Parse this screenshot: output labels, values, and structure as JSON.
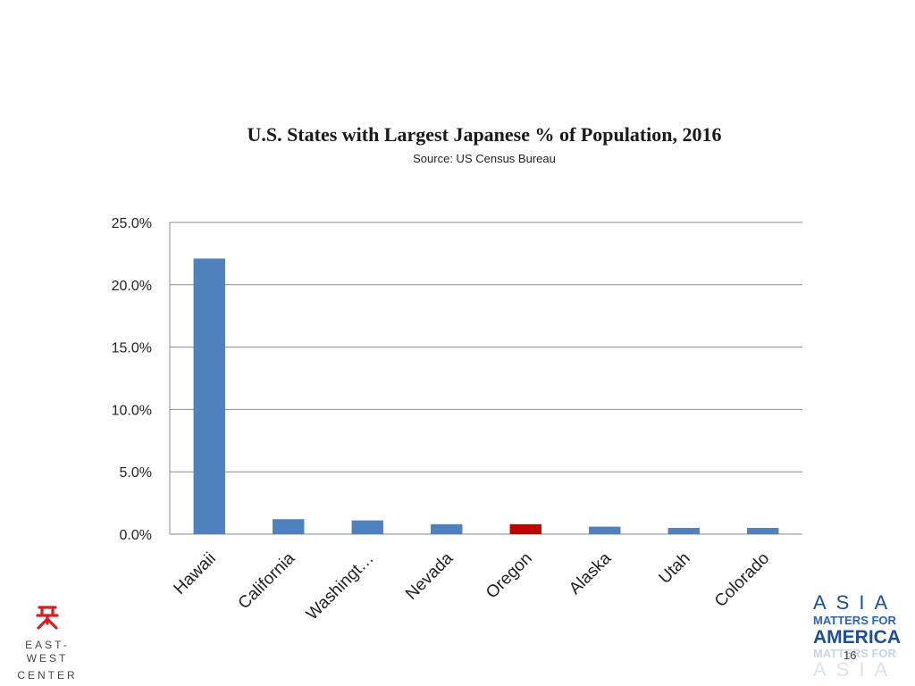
{
  "chart_data": {
    "type": "bar",
    "title": "U.S. States with Largest Japanese % of Population, 2016",
    "subtitle": "Source: US Census Bureau",
    "categories": [
      "Hawaii",
      "California",
      "Washingt…",
      "Nevada",
      "Oregon",
      "Alaska",
      "Utah",
      "Colorado"
    ],
    "values": [
      22.1,
      1.2,
      1.1,
      0.8,
      0.8,
      0.6,
      0.5,
      0.5
    ],
    "ylim": [
      0,
      25
    ],
    "yticks": [
      0,
      5,
      10,
      15,
      20,
      25
    ],
    "ytick_labels": [
      "0.0%",
      "5.0%",
      "10.0%",
      "15.0%",
      "20.0%",
      "25.0%"
    ],
    "xlabel": "",
    "ylabel": "",
    "grid": true,
    "bar_color": "#4f81bd",
    "highlight_color": "#c00000",
    "highlight_category": "Oregon"
  },
  "branding": {
    "east_west_name_line1": "EAST-WEST",
    "east_west_name_line2": "CENTER",
    "asia_line1": "ASIA",
    "asia_line2": "MATTERS FOR",
    "asia_line3": "AMERICA",
    "asia_line4": "MATTERS FOR",
    "asia_line5": "ASIA",
    "ew_color": "#d32027"
  },
  "slide": {
    "page_number": "16"
  }
}
